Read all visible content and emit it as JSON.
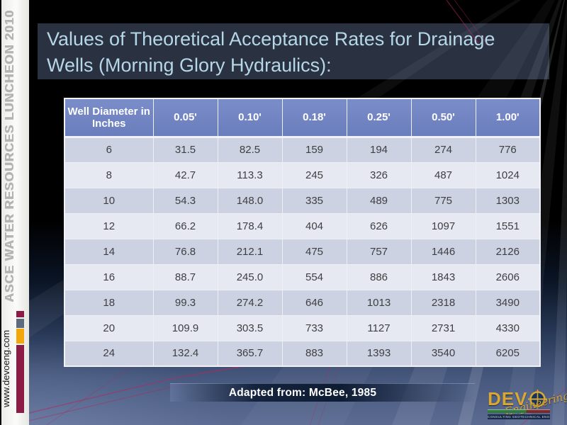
{
  "slide": {
    "title_line1": "Values of Theoretical Acceptance Rates for Drainage",
    "title_line2": "Wells (Morning Glory Hydraulics):",
    "caption": "Adapted from: McBee, 1985"
  },
  "sidebar": {
    "event": "ASCE WATER RESOURCES LUNCHEON 2010",
    "website": "www.devoeng.com"
  },
  "table": {
    "columns": [
      "Well Diameter in Inches",
      "0.05'",
      "0.10'",
      "0.18'",
      "0.25'",
      "0.50'",
      "1.00'"
    ],
    "rows": [
      [
        "6",
        "31.5",
        "82.5",
        "159",
        "194",
        "274",
        "776"
      ],
      [
        "8",
        "42.7",
        "113.3",
        "245",
        "326",
        "487",
        "1024"
      ],
      [
        "10",
        "54.3",
        "148.0",
        "335",
        "489",
        "775",
        "1303"
      ],
      [
        "12",
        "66.2",
        "178.4",
        "404",
        "626",
        "1097",
        "1551"
      ],
      [
        "14",
        "76.8",
        "212.1",
        "475",
        "757",
        "1446",
        "2126"
      ],
      [
        "16",
        "88.7",
        "245.0",
        "554",
        "886",
        "1843",
        "2606"
      ],
      [
        "18",
        "99.3",
        "274.2",
        "646",
        "1013",
        "2318",
        "3490"
      ],
      [
        "20",
        "109.9",
        "303.5",
        "733",
        "1127",
        "2731",
        "4330"
      ],
      [
        "24",
        "132.4",
        "365.7",
        "883",
        "1393",
        "3540",
        "6205"
      ]
    ]
  },
  "logo": {
    "wordmark_prefix": "DEV",
    "wordmark_o": "target-circle",
    "script": "Engineering",
    "tagline": "CONSULTING GEOTECHNICAL ENGINEERS"
  },
  "colors": {
    "title_text": "#b5d7e8",
    "title_band": "#2b3343",
    "table_header_bg": "#7184c3",
    "row_dark": "#ccd2e2",
    "row_light": "#e7e9f2",
    "accent_maroon": "#8c1c45",
    "accent_slate": "#5d6b7e",
    "accent_orange": "#f3a70a",
    "logo_gold": "#d9a733",
    "logo_green": "#2f7a3d",
    "caption_text": "#ffffff",
    "background_bottom": "#5b6b92"
  }
}
